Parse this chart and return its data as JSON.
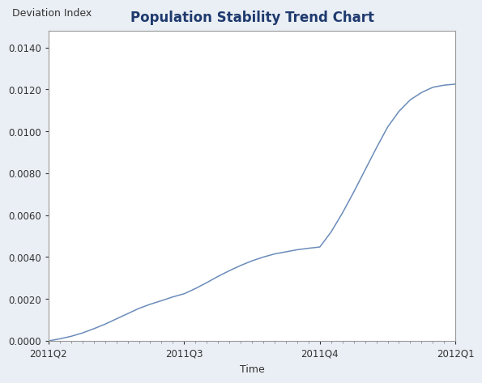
{
  "title": "Population Stability Trend Chart",
  "xlabel": "Time",
  "ylabel": "Deviation Index",
  "background_color": "#eaeff5",
  "plot_background_color": "#ffffff",
  "line_color": "#6b8cba",
  "title_color": "#1f3a6e",
  "title_fontsize": 12,
  "axis_label_fontsize": 9,
  "tick_label_fontsize": 8.5,
  "ylim": [
    0,
    0.0148
  ],
  "yticks": [
    0.0,
    0.002,
    0.004,
    0.006,
    0.008,
    0.01,
    0.012,
    0.014
  ],
  "x_values": [
    0,
    1,
    2,
    3,
    4,
    5,
    6,
    7,
    8,
    9,
    10,
    11,
    12,
    13,
    14,
    15,
    16,
    17,
    18,
    19,
    20,
    21,
    22,
    23,
    24,
    25,
    26,
    27,
    28,
    29,
    30,
    31,
    32,
    33,
    34,
    35,
    36
  ],
  "y_values": [
    0.0,
    0.0001,
    0.00022,
    0.00038,
    0.00058,
    0.0008,
    0.00105,
    0.0013,
    0.00155,
    0.00175,
    0.00192,
    0.0021,
    0.00225,
    0.0025,
    0.00278,
    0.00308,
    0.00335,
    0.0036,
    0.00382,
    0.004,
    0.00415,
    0.00425,
    0.00435,
    0.00442,
    0.00448,
    0.0052,
    0.0061,
    0.0071,
    0.00815,
    0.0092,
    0.0102,
    0.01095,
    0.0115,
    0.01185,
    0.0121,
    0.0122,
    0.01225
  ],
  "xtick_positions": [
    0,
    12,
    24,
    36
  ],
  "xtick_labels": [
    "2011Q2",
    "2011Q3",
    "2011Q4",
    "2012Q1"
  ],
  "border_color": "#999999",
  "line_width": 1.1
}
